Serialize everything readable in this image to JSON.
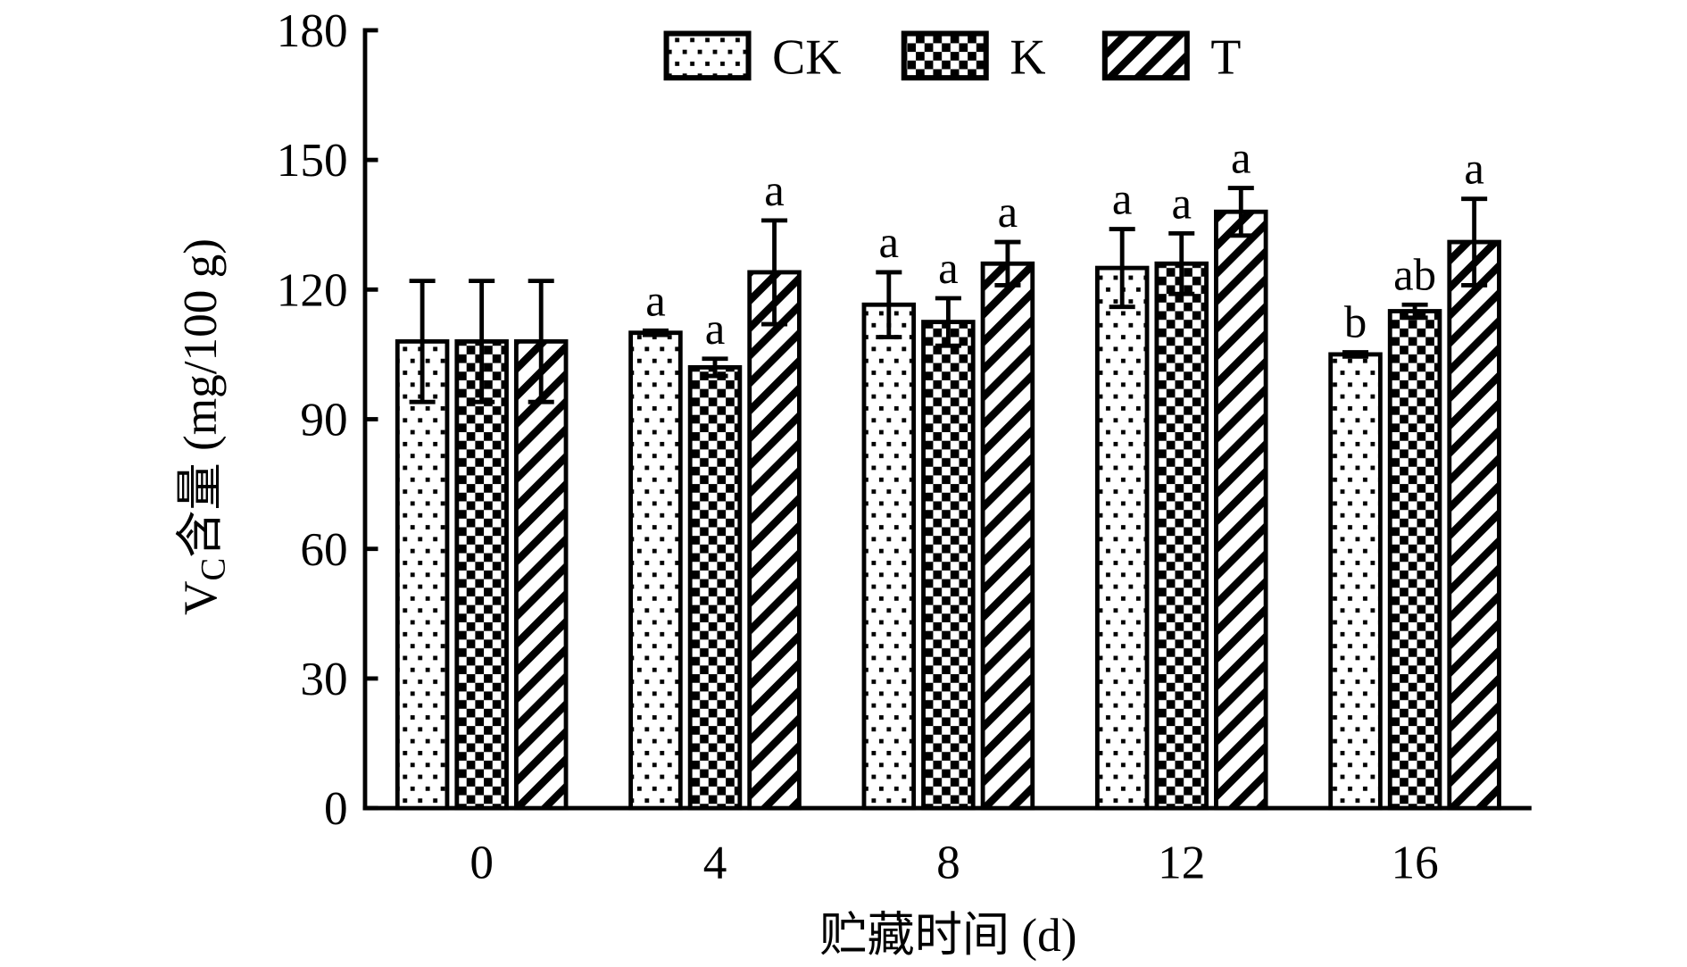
{
  "chart_data": {
    "type": "bar",
    "categories": [
      "0",
      "4",
      "8",
      "12",
      "16"
    ],
    "x_label": "贮藏时间 (d)",
    "y_label_main": "V",
    "y_label_sub": "C",
    "y_label_rest": "含量 (mg/100 g)",
    "ylim": [
      0,
      180
    ],
    "yticks": [
      0,
      30,
      60,
      90,
      120,
      150,
      180
    ],
    "series": [
      {
        "name": "CK",
        "color": "#000000",
        "pattern": "dots",
        "values": [
          108,
          110,
          116.5,
          125,
          105
        ],
        "errors": [
          14,
          0.5,
          7.5,
          9,
          0.5
        ],
        "sig_labels": [
          null,
          "a",
          "a",
          "a",
          "b"
        ]
      },
      {
        "name": "K",
        "color": "#000000",
        "pattern": "checker",
        "values": [
          108,
          102,
          112.5,
          126,
          115
        ],
        "errors": [
          14,
          2,
          5.5,
          7,
          1.5
        ],
        "sig_labels": [
          null,
          "a",
          "a",
          "a",
          "ab"
        ]
      },
      {
        "name": "T",
        "color": "#000000",
        "pattern": "hatch",
        "values": [
          108,
          124,
          126,
          138,
          131
        ],
        "errors": [
          14,
          12,
          5,
          5.5,
          10
        ],
        "sig_labels": [
          null,
          "a",
          "a",
          "a",
          "a"
        ]
      }
    ]
  }
}
